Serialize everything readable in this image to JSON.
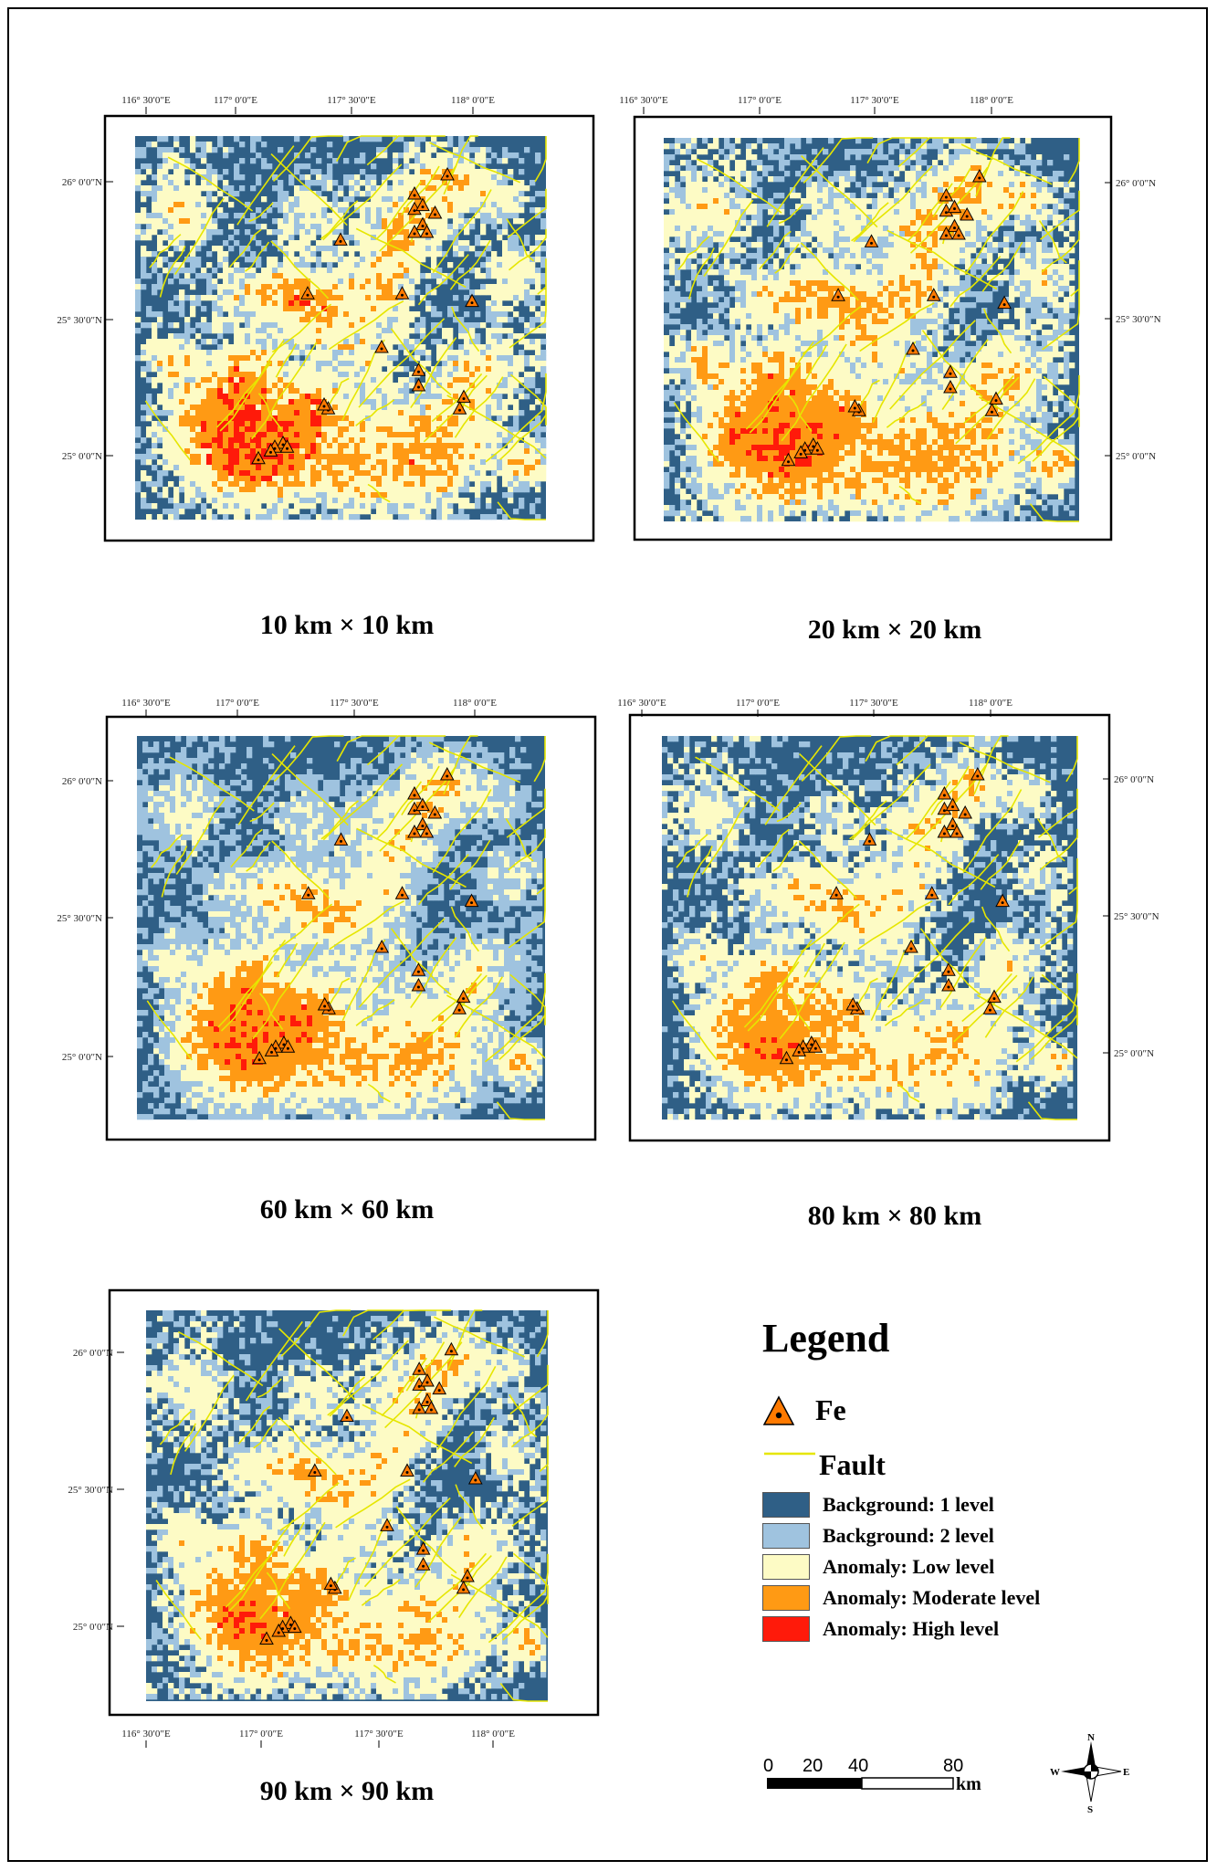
{
  "colors": {
    "bg1": "#2f5f86",
    "bg2": "#9fc3df",
    "low": "#fdfbc5",
    "moderate": "#ff9a14",
    "high": "#ff1a0a",
    "fault": "#e6e600",
    "fe_fill": "#ff7a00"
  },
  "axes": {
    "lon_labels": [
      "116° 30′0″E",
      "117° 0′0″E",
      "117° 30′0″E",
      "118° 0′0″E"
    ],
    "lat_labels": [
      "26° 0′0″N",
      "25° 30′0″N",
      "25° 0′0″N"
    ]
  },
  "panels": [
    {
      "caption": "10 km × 10 km"
    },
    {
      "caption": "20 km × 20 km"
    },
    {
      "caption": "60 km × 60 km"
    },
    {
      "caption": "80 km × 80 km"
    },
    {
      "caption": "90 km × 90 km"
    }
  ],
  "legend": {
    "title": "Legend",
    "fe_label": "Fe",
    "fault_label": "Fault",
    "items": [
      {
        "label": "Background: 1 level",
        "color": "#2f5f86"
      },
      {
        "label": "Background: 2 level",
        "color": "#9fc3df"
      },
      {
        "label": "Anomaly: Low level",
        "color": "#fdfbc5"
      },
      {
        "label": "Anomaly: Moderate level",
        "color": "#ff9a14"
      },
      {
        "label": "Anomaly: High level",
        "color": "#ff1a0a"
      }
    ]
  },
  "scale_bar": {
    "ticks": [
      "0",
      "20",
      "40",
      "80"
    ],
    "unit": "km"
  },
  "compass": {
    "n": "N",
    "s": "S",
    "e": "E",
    "w": "W"
  }
}
